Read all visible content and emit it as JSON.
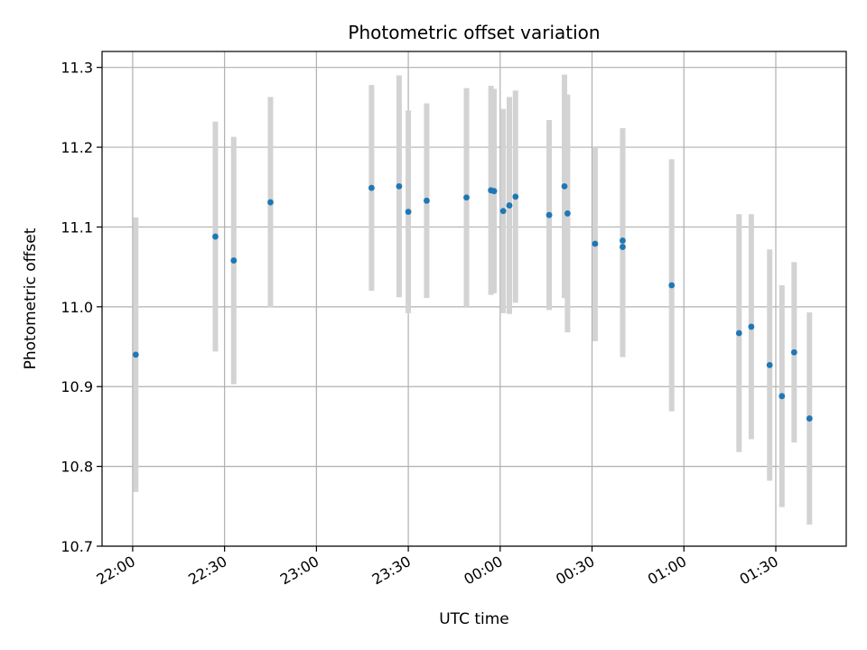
{
  "chart_data": {
    "type": "scatter",
    "title": "Photometric offset variation",
    "xlabel": "UTC time",
    "ylabel": "Photometric offset",
    "x_ticks": [
      "22:00",
      "22:30",
      "23:00",
      "23:30",
      "00:00",
      "00:30",
      "01:00",
      "01:30"
    ],
    "y_ticks": [
      "10.7",
      "10.8",
      "10.9",
      "11.0",
      "11.1",
      "11.2",
      "11.3"
    ],
    "xlim": [
      "21:50",
      "01:53"
    ],
    "ylim": [
      10.7,
      11.32
    ],
    "grid": true,
    "colors": {
      "marker": "#1f77b4",
      "errorbar": "#d3d3d3",
      "grid": "#b0b0b0"
    },
    "points": [
      {
        "t": "22:01",
        "y": 10.94,
        "err": 0.172
      },
      {
        "t": "22:27",
        "y": 11.088,
        "err": 0.144
      },
      {
        "t": "22:33",
        "y": 11.058,
        "err": 0.155
      },
      {
        "t": "22:45",
        "y": 11.131,
        "err": 0.132
      },
      {
        "t": "23:18",
        "y": 11.149,
        "err": 0.129
      },
      {
        "t": "23:27",
        "y": 11.151,
        "err": 0.139
      },
      {
        "t": "23:30",
        "y": 11.119,
        "err": 0.127
      },
      {
        "t": "23:36",
        "y": 11.133,
        "err": 0.122
      },
      {
        "t": "23:49",
        "y": 11.137,
        "err": 0.137
      },
      {
        "t": "23:57",
        "y": 11.146,
        "err": 0.131
      },
      {
        "t": "23:58",
        "y": 11.145,
        "err": 0.128
      },
      {
        "t": "00:01",
        "y": 11.12,
        "err": 0.128
      },
      {
        "t": "00:03",
        "y": 11.127,
        "err": 0.136
      },
      {
        "t": "00:05",
        "y": 11.138,
        "err": 0.133
      },
      {
        "t": "00:16",
        "y": 11.115,
        "err": 0.119
      },
      {
        "t": "00:21",
        "y": 11.151,
        "err": 0.14
      },
      {
        "t": "00:22",
        "y": 11.117,
        "err": 0.149
      },
      {
        "t": "00:31",
        "y": 11.079,
        "err": 0.122
      },
      {
        "t": "00:40",
        "y": 11.083,
        "err": 0.141
      },
      {
        "t": "00:40",
        "y": 11.075,
        "err": 0.138
      },
      {
        "t": "00:56",
        "y": 11.027,
        "err": 0.158
      },
      {
        "t": "01:18",
        "y": 10.967,
        "err": 0.149
      },
      {
        "t": "01:22",
        "y": 10.975,
        "err": 0.141
      },
      {
        "t": "01:28",
        "y": 10.927,
        "err": 0.145
      },
      {
        "t": "01:32",
        "y": 10.888,
        "err": 0.139
      },
      {
        "t": "01:36",
        "y": 10.943,
        "err": 0.113
      },
      {
        "t": "01:41",
        "y": 10.86,
        "err": 0.133
      }
    ]
  }
}
